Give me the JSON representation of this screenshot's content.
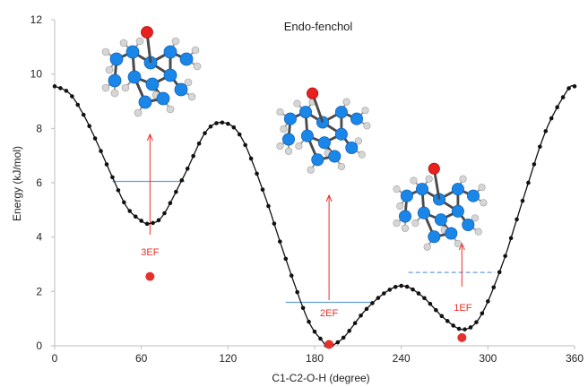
{
  "chart_data": {
    "type": "line",
    "title": "Endo-fenchol",
    "xlabel": "C1-C2-O-H (degree)",
    "ylabel": "Energy (kJ/mol)",
    "xlim": [
      0,
      360
    ],
    "ylim": [
      0,
      12
    ],
    "xticks": [
      0,
      60,
      120,
      180,
      240,
      300,
      360
    ],
    "yticks": [
      0,
      2,
      4,
      6,
      8,
      10,
      12
    ],
    "grid": false,
    "legend": "none",
    "series": [
      {
        "x": [
          0,
          10,
          20,
          30,
          40,
          50,
          60,
          66,
          75,
          90,
          105,
          118,
          130,
          145,
          160,
          175,
          185,
          190,
          200,
          215,
          230,
          242,
          255,
          270,
          283,
          295,
          310,
          325,
          340,
          355,
          360
        ],
        "y": [
          9.55,
          9.3,
          8.5,
          7.4,
          6.2,
          5.1,
          4.6,
          4.5,
          4.8,
          6.3,
          7.9,
          8.2,
          7.6,
          5.6,
          3.2,
          1.0,
          0.2,
          0.0,
          0.3,
          1.3,
          2.0,
          2.2,
          1.8,
          1.0,
          0.6,
          1.1,
          3.0,
          5.5,
          7.9,
          9.4,
          9.55
        ]
      }
    ],
    "annotations": [
      {
        "label": "3EF",
        "x": 66,
        "level": 6.05,
        "level_x": [
          40,
          90
        ],
        "point_y": 2.55
      },
      {
        "label": "2EF",
        "x": 190,
        "level": 1.6,
        "level_x": [
          160,
          220
        ],
        "point_y": 0.05
      },
      {
        "label": "1EF",
        "x": 282,
        "level": 2.7,
        "level_x": [
          245,
          305
        ],
        "point_y": 0.3
      }
    ],
    "colors": {
      "curve": "#111111",
      "level": "#6a9ed4",
      "annotation": "#e8302b",
      "atom_c": "#1a86e8",
      "atom_h": "#d6d6d6",
      "atom_o": "#e82020"
    }
  }
}
